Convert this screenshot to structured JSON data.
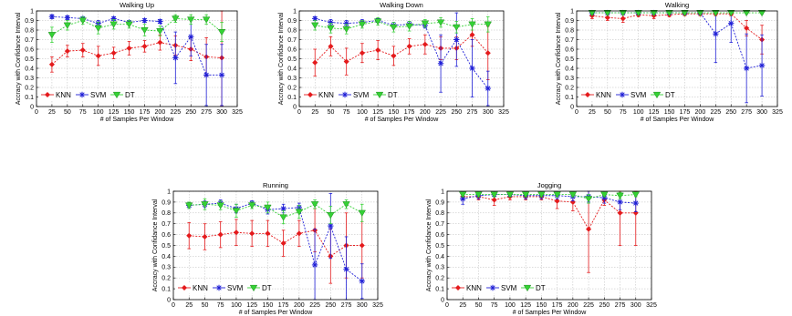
{
  "colors": {
    "KNN": "#e41a1c",
    "SVM": "#1f1fd6",
    "DT": "#35d235"
  },
  "chart_data": [
    {
      "type": "line",
      "title": "Walking Up",
      "xlabel": "# of Samples Per Window",
      "ylabel": "Accracy with Confidance Interval",
      "xlim": [
        0,
        325
      ],
      "ylim": [
        0,
        1
      ],
      "xticks": [
        0,
        25,
        50,
        75,
        100,
        125,
        150,
        175,
        200,
        225,
        250,
        275,
        300,
        325
      ],
      "yticks": [
        0,
        0.1,
        0.2,
        0.3,
        0.4,
        0.5,
        0.6,
        0.7,
        0.8,
        0.9,
        1
      ],
      "grid": true,
      "legend_position": "bottom-left",
      "x": [
        25,
        50,
        75,
        100,
        125,
        150,
        175,
        200,
        225,
        250,
        275,
        300
      ],
      "series": [
        {
          "name": "KNN",
          "marker": "diamond",
          "values": [
            0.44,
            0.58,
            0.59,
            0.53,
            0.56,
            0.61,
            0.63,
            0.67,
            0.64,
            0.6,
            0.52,
            0.51
          ],
          "errors": [
            0.08,
            0.06,
            0.07,
            0.1,
            0.06,
            0.07,
            0.06,
            0.08,
            0.1,
            0.12,
            0.2,
            0.5
          ]
        },
        {
          "name": "SVM",
          "marker": "asterisk",
          "values": [
            0.94,
            0.93,
            0.92,
            0.87,
            0.92,
            0.88,
            0.9,
            0.89,
            0.51,
            0.73,
            0.33,
            0.33
          ],
          "errors": [
            0.02,
            0.02,
            0.02,
            0.03,
            0.02,
            0.02,
            0.02,
            0.02,
            0.27,
            0.2,
            0.32,
            0.32
          ]
        },
        {
          "name": "DT",
          "marker": "triangle",
          "values": [
            0.75,
            0.85,
            0.9,
            0.82,
            0.86,
            0.86,
            0.8,
            0.79,
            0.92,
            0.91,
            0.91,
            0.78
          ],
          "errors": [
            0.08,
            0.05,
            0.04,
            0.06,
            0.05,
            0.04,
            0.06,
            0.05,
            0.04,
            0.05,
            0.05,
            0.1
          ]
        }
      ]
    },
    {
      "type": "line",
      "title": "Walking Down",
      "xlabel": "# of Samples Per Window",
      "ylabel": "Accracy with Confidance Interval",
      "xlim": [
        0,
        325
      ],
      "ylim": [
        0,
        1
      ],
      "xticks": [
        0,
        25,
        50,
        75,
        100,
        125,
        150,
        175,
        200,
        225,
        250,
        275,
        300,
        325
      ],
      "yticks": [
        0,
        0.1,
        0.2,
        0.3,
        0.4,
        0.5,
        0.6,
        0.7,
        0.8,
        0.9,
        1
      ],
      "grid": true,
      "legend_position": "bottom-left",
      "x": [
        25,
        50,
        75,
        100,
        125,
        150,
        175,
        200,
        225,
        250,
        275,
        300
      ],
      "series": [
        {
          "name": "KNN",
          "marker": "diamond",
          "values": [
            0.46,
            0.63,
            0.47,
            0.56,
            0.59,
            0.53,
            0.63,
            0.65,
            0.61,
            0.61,
            0.75,
            0.56
          ],
          "errors": [
            0.14,
            0.1,
            0.14,
            0.1,
            0.1,
            0.1,
            0.08,
            0.1,
            0.12,
            0.12,
            0.12,
            0.28
          ]
        },
        {
          "name": "SVM",
          "marker": "asterisk",
          "values": [
            0.92,
            0.88,
            0.87,
            0.88,
            0.9,
            0.85,
            0.86,
            0.85,
            0.45,
            0.7,
            0.4,
            0.19
          ],
          "errors": [
            0.02,
            0.03,
            0.03,
            0.03,
            0.02,
            0.03,
            0.03,
            0.03,
            0.3,
            0.28,
            0.3,
            0.18
          ]
        },
        {
          "name": "DT",
          "marker": "triangle",
          "values": [
            0.85,
            0.82,
            0.81,
            0.86,
            0.89,
            0.83,
            0.84,
            0.87,
            0.88,
            0.83,
            0.86,
            0.86
          ],
          "errors": [
            0.05,
            0.05,
            0.05,
            0.04,
            0.04,
            0.05,
            0.05,
            0.04,
            0.05,
            0.06,
            0.06,
            0.08
          ]
        }
      ]
    },
    {
      "type": "line",
      "title": "Walking",
      "xlabel": "# of Samples Per Window",
      "ylabel": "Accracy with Confidance Interval",
      "xlim": [
        0,
        325
      ],
      "ylim": [
        0,
        1
      ],
      "xticks": [
        0,
        25,
        50,
        75,
        100,
        125,
        150,
        175,
        200,
        225,
        250,
        275,
        300,
        325
      ],
      "yticks": [
        0,
        0.1,
        0.2,
        0.3,
        0.4,
        0.5,
        0.6,
        0.7,
        0.8,
        0.9,
        1
      ],
      "grid": true,
      "legend_position": "bottom-left",
      "x": [
        25,
        50,
        75,
        100,
        125,
        150,
        175,
        200,
        225,
        250,
        275,
        300
      ],
      "series": [
        {
          "name": "KNN",
          "marker": "diamond",
          "values": [
            0.95,
            0.93,
            0.92,
            0.96,
            0.95,
            0.96,
            0.97,
            0.97,
            0.97,
            0.97,
            0.82,
            0.7
          ],
          "errors": [
            0.03,
            0.03,
            0.04,
            0.02,
            0.03,
            0.02,
            0.02,
            0.02,
            0.02,
            0.02,
            0.08,
            0.15
          ]
        },
        {
          "name": "SVM",
          "marker": "asterisk",
          "values": [
            0.98,
            0.98,
            0.98,
            0.98,
            0.98,
            0.98,
            0.98,
            0.98,
            0.76,
            0.87,
            0.4,
            0.43
          ],
          "errors": [
            0.01,
            0.01,
            0.01,
            0.01,
            0.01,
            0.01,
            0.01,
            0.01,
            0.3,
            0.2,
            0.36,
            0.32
          ]
        },
        {
          "name": "DT",
          "marker": "triangle",
          "values": [
            0.98,
            0.98,
            0.98,
            0.98,
            0.98,
            0.98,
            0.98,
            0.98,
            0.98,
            0.98,
            0.98,
            0.98
          ],
          "errors": [
            0.01,
            0.01,
            0.01,
            0.01,
            0.01,
            0.01,
            0.01,
            0.01,
            0.01,
            0.01,
            0.01,
            0.01
          ]
        }
      ]
    },
    {
      "type": "line",
      "title": "Running",
      "xlabel": "# of Samples Per Window",
      "ylabel": "Accracy with Confidance Interval",
      "xlim": [
        0,
        325
      ],
      "ylim": [
        0,
        1
      ],
      "xticks": [
        0,
        25,
        50,
        75,
        100,
        125,
        150,
        175,
        200,
        225,
        250,
        275,
        300,
        325
      ],
      "yticks": [
        0,
        0.1,
        0.2,
        0.3,
        0.4,
        0.5,
        0.6,
        0.7,
        0.8,
        0.9,
        1
      ],
      "grid": true,
      "legend_position": "bottom-left",
      "x": [
        25,
        50,
        75,
        100,
        125,
        150,
        175,
        200,
        225,
        250,
        275,
        300
      ],
      "series": [
        {
          "name": "KNN",
          "marker": "diamond",
          "values": [
            0.59,
            0.58,
            0.6,
            0.62,
            0.61,
            0.61,
            0.52,
            0.61,
            0.64,
            0.4,
            0.5,
            0.5
          ],
          "errors": [
            0.12,
            0.12,
            0.12,
            0.12,
            0.12,
            0.12,
            0.12,
            0.12,
            0.2,
            0.25,
            0.3,
            0.3
          ]
        },
        {
          "name": "SVM",
          "marker": "asterisk",
          "values": [
            0.87,
            0.88,
            0.89,
            0.84,
            0.89,
            0.83,
            0.84,
            0.85,
            0.32,
            0.68,
            0.28,
            0.17
          ],
          "errors": [
            0.03,
            0.03,
            0.03,
            0.04,
            0.02,
            0.04,
            0.04,
            0.04,
            0.33,
            0.3,
            0.3,
            0.16
          ]
        },
        {
          "name": "DT",
          "marker": "triangle",
          "values": [
            0.87,
            0.88,
            0.87,
            0.82,
            0.87,
            0.85,
            0.76,
            0.81,
            0.88,
            0.78,
            0.88,
            0.8
          ],
          "errors": [
            0.03,
            0.05,
            0.04,
            0.06,
            0.03,
            0.05,
            0.06,
            0.06,
            0.04,
            0.08,
            0.04,
            0.08
          ]
        }
      ]
    },
    {
      "type": "line",
      "title": "Jogging",
      "xlabel": "# of Samples Per Window",
      "ylabel": "Accracy with Confidance Interval",
      "xlim": [
        0,
        325
      ],
      "ylim": [
        0,
        1
      ],
      "xticks": [
        0,
        25,
        50,
        75,
        100,
        125,
        150,
        175,
        200,
        225,
        250,
        275,
        300,
        325
      ],
      "yticks": [
        0,
        0.1,
        0.2,
        0.3,
        0.4,
        0.5,
        0.6,
        0.7,
        0.8,
        0.9,
        1
      ],
      "grid": true,
      "legend_position": "bottom-left",
      "x": [
        25,
        50,
        75,
        100,
        125,
        150,
        175,
        200,
        225,
        250,
        275,
        300
      ],
      "series": [
        {
          "name": "KNN",
          "marker": "diamond",
          "values": [
            0.95,
            0.95,
            0.92,
            0.95,
            0.95,
            0.95,
            0.91,
            0.9,
            0.65,
            0.92,
            0.8,
            0.8
          ],
          "errors": [
            0.03,
            0.03,
            0.05,
            0.03,
            0.03,
            0.03,
            0.07,
            0.08,
            0.4,
            0.05,
            0.3,
            0.3
          ]
        },
        {
          "name": "SVM",
          "marker": "asterisk",
          "values": [
            0.93,
            0.96,
            0.97,
            0.97,
            0.96,
            0.96,
            0.96,
            0.95,
            0.95,
            0.94,
            0.9,
            0.89
          ],
          "errors": [
            0.05,
            0.03,
            0.02,
            0.02,
            0.03,
            0.03,
            0.03,
            0.04,
            0.05,
            0.05,
            0.07,
            0.08
          ]
        },
        {
          "name": "DT",
          "marker": "triangle",
          "values": [
            0.97,
            0.97,
            0.97,
            0.97,
            0.97,
            0.97,
            0.97,
            0.97,
            0.93,
            0.97,
            0.96,
            0.97
          ],
          "errors": [
            0.02,
            0.02,
            0.02,
            0.02,
            0.02,
            0.02,
            0.02,
            0.02,
            0.04,
            0.02,
            0.03,
            0.02
          ]
        }
      ]
    }
  ]
}
